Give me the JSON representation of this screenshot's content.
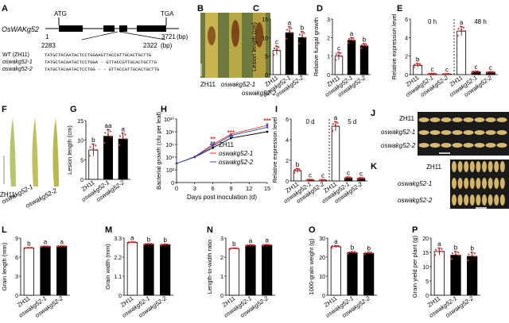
{
  "panels": {
    "A": {
      "letter": "A",
      "gene": "OsWAKg52",
      "start_codon": "ATG",
      "stop_codon": "TGA",
      "pos_start": "1",
      "pos_end": "3721",
      "unit": "(bp)",
      "del_start": "2283",
      "del_end": "2322",
      "del_unit": "(bp)",
      "alleles": [
        {
          "name": "WT (ZH11)",
          "seq": "TATGCTACAATACTCCTGGAAGTTACCGTTGCACTGCTTG"
        },
        {
          "name": "oswakg52-1",
          "seq": "TATGCTACAATACTCCTGGA - GTTACCGTTGCACTGCTTG"
        },
        {
          "name": "oswakg52-2",
          "seq": "TATGCTACAATACTCCTGG - - GTTACCGTTGCACTGCTTG"
        }
      ]
    },
    "B": {
      "letter": "B",
      "labels": [
        "ZH11",
        "oswakg52-1",
        "oswakg52-2"
      ]
    },
    "C": {
      "letter": "C"
    },
    "D": {
      "letter": "D"
    },
    "E": {
      "letter": "E"
    },
    "F": {
      "letter": "F",
      "labels": [
        "ZH11",
        "oswakg52-1",
        "oswakg52-2"
      ]
    },
    "G": {
      "letter": "G"
    },
    "H": {
      "letter": "H"
    },
    "I": {
      "letter": "I"
    },
    "J": {
      "letter": "J",
      "labels": [
        "ZH11",
        "oswakg52-1",
        "oswakg52-2"
      ]
    },
    "K": {
      "letter": "K",
      "labels": [
        "ZH11",
        "oswakg52-1",
        "oswakg52-2"
      ]
    },
    "L": {
      "letter": "L"
    },
    "M": {
      "letter": "M"
    },
    "N": {
      "letter": "N"
    },
    "O": {
      "letter": "O"
    },
    "P": {
      "letter": "P"
    }
  },
  "chart_data": [
    {
      "id": "C",
      "type": "bar",
      "categories": [
        "ZH11",
        "oswakg52-1",
        "oswakg52-2"
      ],
      "values": [
        6.5,
        11.3,
        10.0
      ],
      "errors": [
        1.2,
        1.6,
        1.6
      ],
      "letters": [
        "c",
        "a",
        "b"
      ],
      "ylabel": "Lesion length (cm)",
      "ylim": [
        0,
        15
      ],
      "yticks": [
        0,
        5,
        10,
        15
      ],
      "fills": [
        "#ffffff",
        "#000000",
        "#000000"
      ]
    },
    {
      "id": "D",
      "type": "bar",
      "categories": [
        "ZH11",
        "oswakg52-1",
        "oswakg52-2"
      ],
      "values": [
        1.0,
        1.85,
        1.55
      ],
      "errors": [
        0.2,
        0.15,
        0.12
      ],
      "letters": [
        "c",
        "a",
        "b"
      ],
      "ylabel": "Relative fungal growth",
      "ylim": [
        0,
        3
      ],
      "yticks": [
        0,
        1,
        2,
        3
      ],
      "fills": [
        "#ffffff",
        "#000000",
        "#000000"
      ]
    },
    {
      "id": "E",
      "type": "bar",
      "categories": [
        "ZH11",
        "oswakg52-1",
        "oswakg52-2",
        "ZH11",
        "oswakg52-1",
        "oswakg52-2"
      ],
      "values": [
        1.0,
        0.08,
        0.05,
        4.7,
        0.3,
        0.25
      ],
      "errors": [
        0.2,
        0.05,
        0.05,
        0.5,
        0.08,
        0.07
      ],
      "letters": [
        "b",
        "c",
        "c",
        "a",
        "c",
        "c"
      ],
      "groups": [
        "0 h",
        "48 h"
      ],
      "ylabel": "Relative expression level",
      "ylim": [
        0,
        6
      ],
      "yticks": [
        0,
        2,
        4,
        6
      ],
      "fills": [
        "#ffffff",
        "#000000",
        "#000000",
        "#ffffff",
        "#000000",
        "#000000"
      ]
    },
    {
      "id": "G",
      "type": "bar",
      "categories": [
        "ZH11",
        "oswakg52-1",
        "oswakg52-2"
      ],
      "values": [
        7.5,
        11.0,
        10.3
      ],
      "errors": [
        1.5,
        1.7,
        1.5
      ],
      "letters": [
        "b",
        "aa",
        "a"
      ],
      "ylabel": "Lesion length (cm)",
      "ylim": [
        0,
        15
      ],
      "yticks": [
        0,
        5,
        10,
        15
      ],
      "fills": [
        "#ffffff",
        "#000000",
        "#000000"
      ]
    },
    {
      "id": "H",
      "type": "line",
      "x": [
        0,
        3,
        6,
        9,
        15
      ],
      "series": [
        {
          "name": "ZH11",
          "color": "#000000",
          "values": [
            1000,
            10000,
            300000,
            10000000,
            100000000
          ]
        },
        {
          "name": "oswakg52-1",
          "color": "#e03030",
          "values": [
            1000,
            12000,
            1000000,
            40000000,
            1000000000
          ]
        },
        {
          "name": "oswakg52-2",
          "color": "#3050c0",
          "values": [
            1000,
            11000,
            600000,
            25000000,
            500000000
          ]
        }
      ],
      "stars": [
        {
          "x": 6,
          "t": "**",
          "c": "#e03030"
        },
        {
          "x": 6,
          "t": "**",
          "c": "#3050c0"
        },
        {
          "x": 9,
          "t": "***",
          "c": "#e03030"
        },
        {
          "x": 9,
          "t": "**",
          "c": "#3050c0"
        },
        {
          "x": 15,
          "t": "***",
          "c": "#e03030"
        },
        {
          "x": 15,
          "t": "*",
          "c": "#3050c0"
        }
      ],
      "xlabel": "Days post inoculation (d)",
      "ylabel": "Bacterial growth (cfu per leaf)",
      "xticks": [
        0,
        3,
        6,
        9,
        12,
        15
      ],
      "yticks": [
        0,
        100,
        10000,
        1000000,
        100000000,
        10000000000
      ],
      "ytick_labels": [
        "0",
        "10²",
        "10⁴",
        "10⁶",
        "10⁸",
        "10¹⁰"
      ],
      "log": true
    },
    {
      "id": "I",
      "type": "bar",
      "categories": [
        "ZH11",
        "oswakg52-1",
        "oswakg52-2",
        "ZH11",
        "oswakg52-1",
        "oswakg52-2"
      ],
      "values": [
        1.0,
        0.1,
        0.08,
        5.3,
        0.3,
        0.25
      ],
      "errors": [
        0.2,
        0.05,
        0.05,
        0.45,
        0.08,
        0.07
      ],
      "letters": [
        "b",
        "c",
        "c",
        "a",
        "c",
        "c"
      ],
      "groups": [
        "0 d",
        "5 d"
      ],
      "ylabel": "Relative expression level",
      "ylim": [
        0,
        6
      ],
      "yticks": [
        0,
        2,
        4,
        6
      ],
      "fills": [
        "#ffffff",
        "#000000",
        "#000000",
        "#ffffff",
        "#000000",
        "#000000"
      ]
    },
    {
      "id": "L",
      "type": "bar",
      "categories": [
        "ZH11",
        "oswakg52-1",
        "oswakg52-2"
      ],
      "values": [
        7.45,
        7.68,
        7.72
      ],
      "errors": [
        0.05,
        0.05,
        0.05
      ],
      "letters": [
        "b",
        "a",
        "a"
      ],
      "ylabel": "Grain length (mm)",
      "ylim": [
        0,
        9
      ],
      "yticks": [
        0,
        3,
        6,
        9
      ],
      "fills": [
        "#ffffff",
        "#000000",
        "#000000"
      ]
    },
    {
      "id": "M",
      "type": "bar",
      "categories": [
        "ZH11",
        "oswakg52-1",
        "oswakg52-2"
      ],
      "values": [
        3.05,
        2.95,
        2.92
      ],
      "errors": [
        0.03,
        0.03,
        0.03
      ],
      "letters": [
        "a",
        "b",
        "b"
      ],
      "ylabel": "Grain width (mm)",
      "ylim": [
        0,
        3.3
      ],
      "yticks": [
        0,
        1.1,
        2.2,
        3.3
      ],
      "fills": [
        "#ffffff",
        "#000000",
        "#000000"
      ]
    },
    {
      "id": "N",
      "type": "bar",
      "categories": [
        "ZH11",
        "oswakg52-1",
        "oswakg52-2"
      ],
      "values": [
        2.45,
        2.62,
        2.63
      ],
      "errors": [
        0.03,
        0.03,
        0.03
      ],
      "letters": [
        "b",
        "a",
        "a"
      ],
      "ylabel": "Length-to-width ratio",
      "ylim": [
        0,
        3
      ],
      "yticks": [
        0,
        1,
        2,
        3
      ],
      "fills": [
        "#ffffff",
        "#000000",
        "#000000"
      ]
    },
    {
      "id": "O",
      "type": "bar",
      "categories": [
        "ZH11",
        "oswakg52-1",
        "oswakg52-2"
      ],
      "values": [
        25.5,
        22.3,
        22.0
      ],
      "errors": [
        0.6,
        0.6,
        0.6
      ],
      "letters": [
        "a",
        "b",
        "b"
      ],
      "ylabel": "1000-grain weight (g)",
      "ylim": [
        0,
        30
      ],
      "yticks": [
        0,
        10,
        20,
        30
      ],
      "fills": [
        "#ffffff",
        "#000000",
        "#000000"
      ]
    },
    {
      "id": "P",
      "type": "bar",
      "categories": [
        "ZH11",
        "oswakg52-1",
        "oswakg52-2"
      ],
      "values": [
        15.3,
        14.0,
        13.6
      ],
      "errors": [
        1.2,
        1.3,
        1.4
      ],
      "letters": [
        "a",
        "b",
        "b"
      ],
      "ylabel": "Grain yield per plant (g)",
      "ylim": [
        0,
        20
      ],
      "yticks": [
        0,
        5,
        10,
        15,
        20
      ],
      "fills": [
        "#ffffff",
        "#000000",
        "#000000"
      ]
    }
  ]
}
